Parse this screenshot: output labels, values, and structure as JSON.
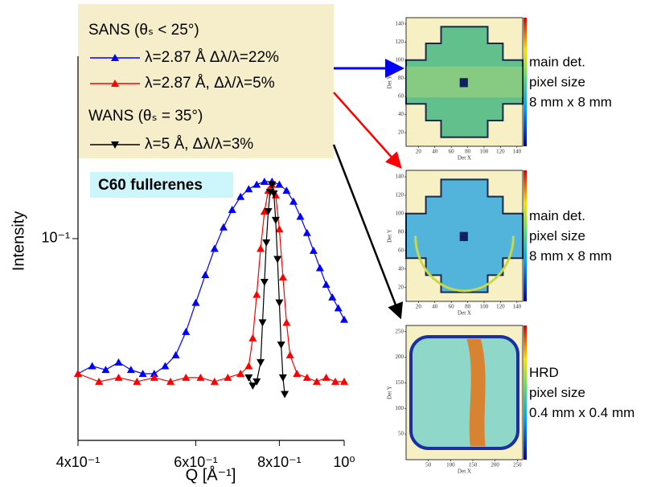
{
  "chart_data": [
    {
      "type": "line",
      "xlabel": "Q [Å⁻¹]",
      "ylabel": "Intensity",
      "log_x": true,
      "log_y": true,
      "xlim": [
        0.4,
        1.0
      ],
      "ylim": [
        0.0355,
        0.255
      ],
      "xticks": [
        {
          "value": 0.4,
          "label": "4x10⁻¹"
        },
        {
          "value": 0.6,
          "label": "6x10⁻¹"
        },
        {
          "value": 0.8,
          "label": "8x10⁻¹"
        },
        {
          "value": 1.0,
          "label": "10⁰"
        }
      ],
      "yticks": [
        {
          "value": 0.1,
          "label": "10⁻¹"
        }
      ],
      "legend_headers": [
        "SANS (θₛ < 25°)",
        "WANS (θₛ = 35°)"
      ],
      "annotation": "C60 fullerenes",
      "series": [
        {
          "name": "λ=2.87 Å Δλ/λ=22%",
          "color": "#0000ff",
          "marker": "triangle-up",
          "x": [
            0.4,
            0.42,
            0.44,
            0.46,
            0.48,
            0.5,
            0.52,
            0.54,
            0.56,
            0.58,
            0.6,
            0.62,
            0.64,
            0.66,
            0.68,
            0.7,
            0.72,
            0.74,
            0.76,
            0.78,
            0.8,
            0.82,
            0.84,
            0.86,
            0.88,
            0.9,
            0.92,
            0.94,
            0.96,
            0.98,
            1.0
          ],
          "values": [
            0.05,
            0.052,
            0.051,
            0.053,
            0.051,
            0.05,
            0.05,
            0.052,
            0.055,
            0.062,
            0.072,
            0.083,
            0.095,
            0.106,
            0.116,
            0.124,
            0.129,
            0.132,
            0.134,
            0.134,
            0.132,
            0.128,
            0.121,
            0.112,
            0.103,
            0.094,
            0.086,
            0.079,
            0.074,
            0.07,
            0.066
          ]
        },
        {
          "name": "λ=2.87 Å, Δλ/λ=5%",
          "color": "#ff0000",
          "marker": "triangle-up",
          "x": [
            0.4,
            0.43,
            0.46,
            0.49,
            0.52,
            0.55,
            0.58,
            0.61,
            0.64,
            0.67,
            0.7,
            0.72,
            0.73,
            0.74,
            0.75,
            0.76,
            0.77,
            0.78,
            0.79,
            0.8,
            0.81,
            0.82,
            0.83,
            0.85,
            0.88,
            0.91,
            0.94,
            0.97,
            1.0
          ],
          "values": [
            0.05,
            0.048,
            0.049,
            0.048,
            0.049,
            0.048,
            0.049,
            0.049,
            0.048,
            0.049,
            0.05,
            0.052,
            0.06,
            0.075,
            0.095,
            0.115,
            0.128,
            0.132,
            0.125,
            0.105,
            0.082,
            0.065,
            0.055,
            0.05,
            0.049,
            0.048,
            0.049,
            0.048,
            0.048
          ]
        },
        {
          "name": "λ=5 Å, Δλ/λ=3%",
          "color": "#000000",
          "marker": "triangle-down",
          "x": [
            0.72,
            0.73,
            0.74,
            0.75,
            0.755,
            0.76,
            0.765,
            0.77,
            0.775,
            0.78,
            0.785,
            0.79,
            0.795,
            0.8,
            0.805,
            0.81,
            0.815
          ],
          "values": [
            0.049,
            0.047,
            0.048,
            0.053,
            0.065,
            0.08,
            0.098,
            0.115,
            0.127,
            0.132,
            0.126,
            0.11,
            0.09,
            0.072,
            0.058,
            0.049,
            0.045
          ]
        }
      ]
    },
    {
      "type": "heatmap",
      "xlabel": "Det X",
      "ylabel": "Det Y",
      "xlim": [
        5,
        147
      ],
      "ylim": [
        5,
        147
      ],
      "xticks": [
        20,
        40,
        60,
        80,
        100,
        120,
        140
      ],
      "yticks": [
        20,
        40,
        60,
        80,
        100,
        120,
        140
      ],
      "notes": [
        "main det.",
        "pixel size",
        "8 mm x 8 mm"
      ]
    },
    {
      "type": "heatmap",
      "xlabel": "Det X",
      "ylabel": "Det Y",
      "xlim": [
        5,
        147
      ],
      "ylim": [
        5,
        147
      ],
      "xticks": [
        20,
        40,
        60,
        80,
        100,
        120,
        140
      ],
      "yticks": [
        20,
        40,
        60,
        80,
        100,
        120,
        140
      ],
      "notes": [
        "main det.",
        "pixel size",
        "8 mm x 8 mm"
      ]
    },
    {
      "type": "heatmap",
      "xlabel": "Det X",
      "ylabel": "Det Y",
      "xlim": [
        0,
        262
      ],
      "ylim": [
        0,
        262
      ],
      "xticks": [
        50,
        100,
        150,
        200,
        250
      ],
      "yticks": [
        50,
        100,
        150,
        200,
        250
      ],
      "notes": [
        "HRD",
        "pixel size",
        "0.4 mm x 0.4 mm"
      ]
    }
  ]
}
